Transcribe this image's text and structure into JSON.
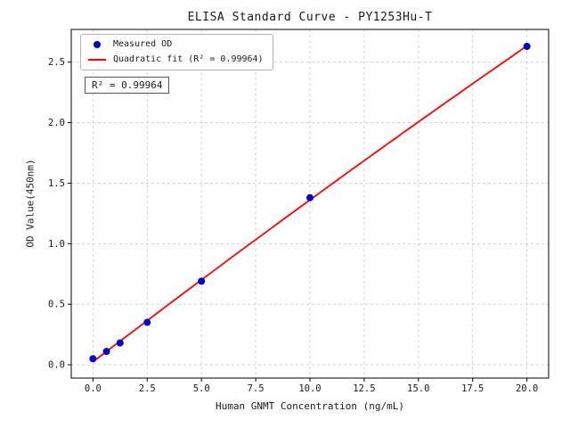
{
  "chart_data": {
    "type": "scatter",
    "title": "ELISA Standard Curve - PY1253Hu-T",
    "xlabel": "Human GNMT Concentration (ng/mL)",
    "ylabel": "OD Value(450nm)",
    "xlim": [
      -1,
      21
    ],
    "ylim": [
      -0.11,
      2.77
    ],
    "xtick_values": [
      0,
      2.5,
      5,
      7.5,
      10,
      12.5,
      15,
      17.5,
      20
    ],
    "xtick_labels": [
      "0.0",
      "2.5",
      "5.0",
      "7.5",
      "10.0",
      "12.5",
      "15.0",
      "17.5",
      "20.0"
    ],
    "ytick_values": [
      0,
      0.5,
      1,
      1.5,
      2,
      2.5
    ],
    "ytick_labels": [
      "0.0",
      "0.5",
      "1.0",
      "1.5",
      "2.0",
      "2.5"
    ],
    "grid": {
      "on": true,
      "style": "dashed",
      "color": "#c9c9c9"
    },
    "series": [
      {
        "name": "Measured OD",
        "type": "scatter",
        "color": "#0000cc",
        "x": [
          0,
          0.625,
          1.25,
          2.5,
          5,
          10,
          20
        ],
        "y": [
          0.05,
          0.11,
          0.18,
          0.35,
          0.69,
          1.38,
          2.63
        ]
      },
      {
        "name": "Quadratic fit (R² = 0.99964)",
        "type": "line",
        "fit": "quadratic",
        "color": "#ff0000",
        "x_range": [
          0,
          20
        ]
      }
    ],
    "legend": {
      "position": "upper-left",
      "items": [
        {
          "label": "Measured OD",
          "marker": "dot",
          "color": "#0000cc"
        },
        {
          "label": "Quadratic fit (R² = 0.99964)",
          "marker": "line",
          "color": "#ff0000"
        }
      ]
    },
    "annotation": "R² = 0.99964",
    "r_squared": 0.99964
  }
}
